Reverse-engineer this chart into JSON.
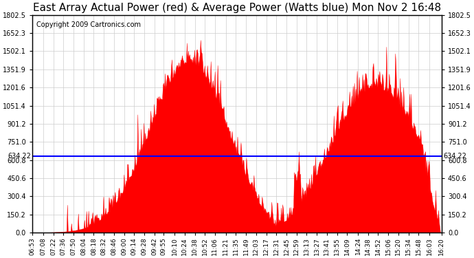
{
  "title": "East Array Actual Power (red) & Average Power (Watts blue) Mon Nov 2 16:48",
  "copyright": "Copyright 2009 Cartronics.com",
  "average_power": 634.22,
  "average_label": "634.22",
  "ymin": 0.0,
  "ymax": 1802.5,
  "yticks": [
    0.0,
    150.2,
    300.4,
    450.6,
    600.8,
    751.0,
    901.2,
    1051.4,
    1201.6,
    1351.9,
    1502.1,
    1652.3,
    1802.5
  ],
  "xtick_labels": [
    "06:53",
    "07:08",
    "07:22",
    "07:36",
    "07:50",
    "08:04",
    "08:18",
    "08:32",
    "08:46",
    "09:00",
    "09:14",
    "09:28",
    "09:42",
    "09:55",
    "10:10",
    "10:24",
    "10:38",
    "10:52",
    "11:06",
    "11:21",
    "11:35",
    "11:49",
    "12:03",
    "12:17",
    "12:31",
    "12:45",
    "12:59",
    "13:13",
    "13:27",
    "13:41",
    "13:55",
    "14:09",
    "14:24",
    "14:38",
    "14:52",
    "15:06",
    "15:20",
    "15:34",
    "15:48",
    "16:03",
    "16:20"
  ],
  "fill_color": "#FF0000",
  "line_color": "#0000FF",
  "bg_color": "#FFFFFF",
  "grid_color": "#CCCCCC",
  "title_fontsize": 11,
  "copyright_fontsize": 7
}
